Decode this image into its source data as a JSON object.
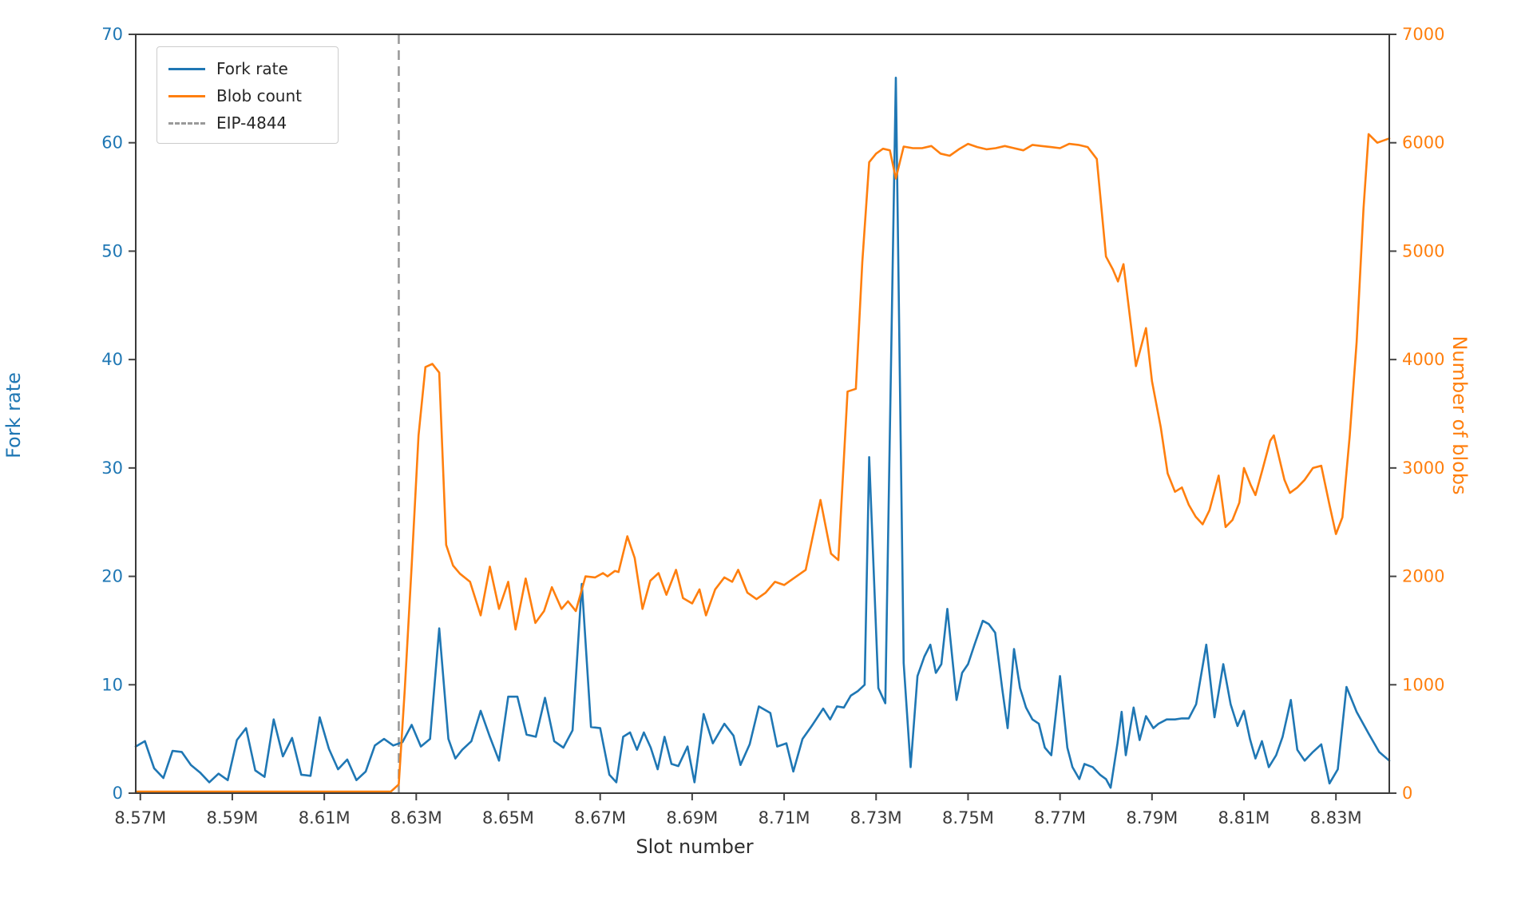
{
  "chart_data": {
    "type": "line",
    "title": "",
    "xlabel": "Slot number",
    "ylabel_left": "Fork rate",
    "ylabel_right": "Number of blobs",
    "xlim": [
      8.569,
      8.8416
    ],
    "ylim_left": [
      0,
      70
    ],
    "ylim_right": [
      0,
      7000
    ],
    "grid": false,
    "legend_position": "upper-left",
    "x_ticks": [
      8.57,
      8.59,
      8.61,
      8.63,
      8.65,
      8.67,
      8.69,
      8.71,
      8.73,
      8.75,
      8.77,
      8.79,
      8.81,
      8.83
    ],
    "x_tick_labels": [
      "8.57M",
      "8.59M",
      "8.61M",
      "8.63M",
      "8.65M",
      "8.67M",
      "8.69M",
      "8.71M",
      "8.73M",
      "8.75M",
      "8.77M",
      "8.79M",
      "8.81M",
      "8.83M"
    ],
    "y_ticks_left": [
      0,
      10,
      20,
      30,
      40,
      50,
      60,
      70
    ],
    "y_tick_labels_left": [
      "0",
      "10",
      "20",
      "30",
      "40",
      "50",
      "60",
      "70"
    ],
    "y_ticks_right": [
      0,
      1000,
      2000,
      3000,
      4000,
      5000,
      6000,
      7000
    ],
    "y_tick_labels_right": [
      "0",
      "1000",
      "2000",
      "3000",
      "4000",
      "5000",
      "6000",
      "7000"
    ],
    "colors": {
      "fork_rate": "#1f77b4",
      "blob_count": "#ff7f0e",
      "vline": "#9a9a9a",
      "x_axis_text": "#3b3b3b",
      "spine": "#3a3a3a",
      "tick": "#444444"
    },
    "vline": {
      "x": 8.6262,
      "label": "EIP-4844",
      "style": "dashed"
    },
    "legend": [
      {
        "label": "Fork rate",
        "color": "#1f77b4",
        "dash": "solid"
      },
      {
        "label": "Blob count",
        "color": "#ff7f0e",
        "dash": "solid"
      },
      {
        "label": "EIP-4844",
        "color": "#9a9a9a",
        "dash": "dashed"
      }
    ],
    "series": [
      {
        "name": "Fork rate",
        "axis": "left",
        "color": "#1f77b4",
        "points": [
          [
            8.569,
            4.3
          ],
          [
            8.571,
            4.8
          ],
          [
            8.573,
            2.3
          ],
          [
            8.575,
            1.4
          ],
          [
            8.577,
            3.9
          ],
          [
            8.579,
            3.8
          ],
          [
            8.581,
            2.6
          ],
          [
            8.583,
            1.9
          ],
          [
            8.585,
            1.0
          ],
          [
            8.587,
            1.8
          ],
          [
            8.589,
            1.2
          ],
          [
            8.591,
            4.9
          ],
          [
            8.593,
            6.0
          ],
          [
            8.595,
            2.1
          ],
          [
            8.597,
            1.5
          ],
          [
            8.599,
            6.8
          ],
          [
            8.601,
            3.4
          ],
          [
            8.603,
            5.1
          ],
          [
            8.605,
            1.7
          ],
          [
            8.607,
            1.6
          ],
          [
            8.609,
            7.0
          ],
          [
            8.611,
            4.1
          ],
          [
            8.613,
            2.2
          ],
          [
            8.615,
            3.1
          ],
          [
            8.617,
            1.2
          ],
          [
            8.619,
            2.0
          ],
          [
            8.621,
            4.4
          ],
          [
            8.623,
            5.0
          ],
          [
            8.625,
            4.4
          ],
          [
            8.627,
            4.7
          ],
          [
            8.629,
            6.3
          ],
          [
            8.631,
            4.3
          ],
          [
            8.633,
            5.0
          ],
          [
            8.635,
            15.2
          ],
          [
            8.637,
            5.0
          ],
          [
            8.6385,
            3.2
          ],
          [
            8.64,
            4.0
          ],
          [
            8.642,
            4.8
          ],
          [
            8.644,
            7.6
          ],
          [
            8.646,
            5.2
          ],
          [
            8.648,
            3.0
          ],
          [
            8.65,
            8.9
          ],
          [
            8.652,
            8.9
          ],
          [
            8.654,
            5.4
          ],
          [
            8.656,
            5.2
          ],
          [
            8.658,
            8.8
          ],
          [
            8.66,
            4.8
          ],
          [
            8.662,
            4.2
          ],
          [
            8.664,
            5.8
          ],
          [
            8.666,
            19.3
          ],
          [
            8.668,
            6.1
          ],
          [
            8.67,
            6.0
          ],
          [
            8.672,
            1.7
          ],
          [
            8.6735,
            1.0
          ],
          [
            8.675,
            5.2
          ],
          [
            8.6765,
            5.6
          ],
          [
            8.678,
            4.0
          ],
          [
            8.6795,
            5.6
          ],
          [
            8.681,
            4.2
          ],
          [
            8.6825,
            2.2
          ],
          [
            8.684,
            5.2
          ],
          [
            8.6855,
            2.7
          ],
          [
            8.687,
            2.5
          ],
          [
            8.689,
            4.3
          ],
          [
            8.6905,
            1.0
          ],
          [
            8.6925,
            7.3
          ],
          [
            8.6945,
            4.6
          ],
          [
            8.697,
            6.4
          ],
          [
            8.699,
            5.3
          ],
          [
            8.7005,
            2.6
          ],
          [
            8.7025,
            4.5
          ],
          [
            8.7045,
            8.0
          ],
          [
            8.707,
            7.4
          ],
          [
            8.7085,
            4.3
          ],
          [
            8.7105,
            4.6
          ],
          [
            8.712,
            2.0
          ],
          [
            8.714,
            5.0
          ],
          [
            8.716,
            6.2
          ],
          [
            8.7185,
            7.8
          ],
          [
            8.72,
            6.8
          ],
          [
            8.7215,
            8.0
          ],
          [
            8.723,
            7.9
          ],
          [
            8.7245,
            9.0
          ],
          [
            8.726,
            9.4
          ],
          [
            8.7275,
            10.0
          ],
          [
            8.7285,
            31.0
          ],
          [
            8.7305,
            9.7
          ],
          [
            8.732,
            8.3
          ],
          [
            8.7343,
            66.0
          ],
          [
            8.736,
            12.0
          ],
          [
            8.7375,
            2.4
          ],
          [
            8.739,
            10.8
          ],
          [
            8.7405,
            12.6
          ],
          [
            8.7418,
            13.7
          ],
          [
            8.743,
            11.1
          ],
          [
            8.7442,
            11.9
          ],
          [
            8.7455,
            17.0
          ],
          [
            8.7475,
            8.6
          ],
          [
            8.7487,
            11.1
          ],
          [
            8.75,
            11.9
          ],
          [
            8.7514,
            13.7
          ],
          [
            8.7532,
            15.9
          ],
          [
            8.7545,
            15.6
          ],
          [
            8.7559,
            14.8
          ],
          [
            8.7574,
            9.7
          ],
          [
            8.7586,
            6.0
          ],
          [
            8.76,
            13.3
          ],
          [
            8.7613,
            9.7
          ],
          [
            8.7626,
            7.9
          ],
          [
            8.764,
            6.8
          ],
          [
            8.7654,
            6.4
          ],
          [
            8.7667,
            4.2
          ],
          [
            8.7681,
            3.5
          ],
          [
            8.77,
            10.8
          ],
          [
            8.7716,
            4.2
          ],
          [
            8.7727,
            2.4
          ],
          [
            8.7742,
            1.3
          ],
          [
            8.7753,
            2.7
          ],
          [
            8.7771,
            2.4
          ],
          [
            8.7787,
            1.7
          ],
          [
            8.78,
            1.3
          ],
          [
            8.781,
            0.5
          ],
          [
            8.7825,
            4.6
          ],
          [
            8.7834,
            7.5
          ],
          [
            8.7843,
            3.5
          ],
          [
            8.785,
            5.3
          ],
          [
            8.786,
            7.9
          ],
          [
            8.7873,
            4.9
          ],
          [
            8.7887,
            7.1
          ],
          [
            8.7903,
            6.0
          ],
          [
            8.7914,
            6.4
          ],
          [
            8.7932,
            6.8
          ],
          [
            8.795,
            6.8
          ],
          [
            8.7965,
            6.9
          ],
          [
            8.798,
            6.9
          ],
          [
            8.7996,
            8.2
          ],
          [
            8.8018,
            13.7
          ],
          [
            8.8036,
            7.0
          ],
          [
            8.8055,
            11.9
          ],
          [
            8.8071,
            8.2
          ],
          [
            8.8086,
            6.2
          ],
          [
            8.81,
            7.6
          ],
          [
            8.8113,
            5.0
          ],
          [
            8.8125,
            3.2
          ],
          [
            8.8139,
            4.8
          ],
          [
            8.8154,
            2.4
          ],
          [
            8.817,
            3.5
          ],
          [
            8.8184,
            5.2
          ],
          [
            8.8202,
            8.6
          ],
          [
            8.8216,
            4.0
          ],
          [
            8.8232,
            3.0
          ],
          [
            8.825,
            3.8
          ],
          [
            8.8268,
            4.5
          ],
          [
            8.8286,
            0.9
          ],
          [
            8.8304,
            2.2
          ],
          [
            8.8323,
            9.8
          ],
          [
            8.8345,
            7.5
          ],
          [
            8.8371,
            5.5
          ],
          [
            8.8394,
            3.8
          ],
          [
            8.8416,
            3.0
          ]
        ]
      },
      {
        "name": "Blob count",
        "axis": "right",
        "color": "#ff7f0e",
        "points": [
          [
            8.569,
            15
          ],
          [
            8.59,
            15
          ],
          [
            8.61,
            15
          ],
          [
            8.6245,
            15
          ],
          [
            8.6262,
            80
          ],
          [
            8.6275,
            950
          ],
          [
            8.629,
            2100
          ],
          [
            8.6305,
            3300
          ],
          [
            8.632,
            3930
          ],
          [
            8.6335,
            3960
          ],
          [
            8.635,
            3880
          ],
          [
            8.6365,
            2290
          ],
          [
            8.638,
            2100
          ],
          [
            8.6395,
            2025
          ],
          [
            8.6417,
            1950
          ],
          [
            8.644,
            1640
          ],
          [
            8.646,
            2090
          ],
          [
            8.648,
            1700
          ],
          [
            8.65,
            1950
          ],
          [
            8.6516,
            1510
          ],
          [
            8.6538,
            1980
          ],
          [
            8.6559,
            1570
          ],
          [
            8.6578,
            1680
          ],
          [
            8.6595,
            1900
          ],
          [
            8.6616,
            1700
          ],
          [
            8.663,
            1770
          ],
          [
            8.6647,
            1680
          ],
          [
            8.6668,
            2000
          ],
          [
            8.6689,
            1990
          ],
          [
            8.6706,
            2030
          ],
          [
            8.6716,
            2000
          ],
          [
            8.6732,
            2050
          ],
          [
            8.674,
            2040
          ],
          [
            8.6759,
            2370
          ],
          [
            8.6775,
            2170
          ],
          [
            8.6792,
            1700
          ],
          [
            8.6809,
            1960
          ],
          [
            8.6827,
            2030
          ],
          [
            8.6844,
            1830
          ],
          [
            8.6865,
            2060
          ],
          [
            8.688,
            1800
          ],
          [
            8.69,
            1750
          ],
          [
            8.6916,
            1880
          ],
          [
            8.693,
            1640
          ],
          [
            8.695,
            1880
          ],
          [
            8.697,
            1990
          ],
          [
            8.6987,
            1950
          ],
          [
            8.7,
            2060
          ],
          [
            8.702,
            1850
          ],
          [
            8.704,
            1790
          ],
          [
            8.706,
            1850
          ],
          [
            8.708,
            1950
          ],
          [
            8.71,
            1920
          ],
          [
            8.712,
            1980
          ],
          [
            8.7147,
            2060
          ],
          [
            8.7179,
            2705
          ],
          [
            8.7202,
            2210
          ],
          [
            8.7218,
            2150
          ],
          [
            8.7238,
            3705
          ],
          [
            8.7256,
            3730
          ],
          [
            8.727,
            4900
          ],
          [
            8.7285,
            5820
          ],
          [
            8.73,
            5900
          ],
          [
            8.7315,
            5945
          ],
          [
            8.733,
            5930
          ],
          [
            8.7343,
            5670
          ],
          [
            8.736,
            5965
          ],
          [
            8.738,
            5950
          ],
          [
            8.74,
            5950
          ],
          [
            8.742,
            5970
          ],
          [
            8.744,
            5900
          ],
          [
            8.746,
            5880
          ],
          [
            8.748,
            5940
          ],
          [
            8.75,
            5990
          ],
          [
            8.752,
            5960
          ],
          [
            8.754,
            5940
          ],
          [
            8.756,
            5950
          ],
          [
            8.758,
            5970
          ],
          [
            8.76,
            5950
          ],
          [
            8.762,
            5930
          ],
          [
            8.764,
            5980
          ],
          [
            8.766,
            5970
          ],
          [
            8.768,
            5960
          ],
          [
            8.77,
            5950
          ],
          [
            8.772,
            5990
          ],
          [
            8.774,
            5980
          ],
          [
            8.776,
            5960
          ],
          [
            8.778,
            5850
          ],
          [
            8.78,
            4950
          ],
          [
            8.7815,
            4830
          ],
          [
            8.7826,
            4720
          ],
          [
            8.7838,
            4880
          ],
          [
            8.7865,
            3940
          ],
          [
            8.7887,
            4290
          ],
          [
            8.79,
            3800
          ],
          [
            8.7919,
            3375
          ],
          [
            8.7934,
            2950
          ],
          [
            8.795,
            2780
          ],
          [
            8.7965,
            2820
          ],
          [
            8.798,
            2660
          ],
          [
            8.7995,
            2550
          ],
          [
            8.801,
            2480
          ],
          [
            8.8025,
            2610
          ],
          [
            8.8045,
            2930
          ],
          [
            8.806,
            2455
          ],
          [
            8.8075,
            2520
          ],
          [
            8.809,
            2680
          ],
          [
            8.81,
            3000
          ],
          [
            8.8115,
            2840
          ],
          [
            8.8125,
            2750
          ],
          [
            8.814,
            2980
          ],
          [
            8.8157,
            3250
          ],
          [
            8.8165,
            3300
          ],
          [
            8.8188,
            2890
          ],
          [
            8.82,
            2770
          ],
          [
            8.8216,
            2820
          ],
          [
            8.8232,
            2890
          ],
          [
            8.825,
            3000
          ],
          [
            8.8268,
            3020
          ],
          [
            8.8286,
            2660
          ],
          [
            8.83,
            2390
          ],
          [
            8.8314,
            2545
          ],
          [
            8.833,
            3300
          ],
          [
            8.8345,
            4160
          ],
          [
            8.836,
            5390
          ],
          [
            8.8371,
            6080
          ],
          [
            8.839,
            6000
          ],
          [
            8.8416,
            6040
          ]
        ]
      }
    ]
  }
}
